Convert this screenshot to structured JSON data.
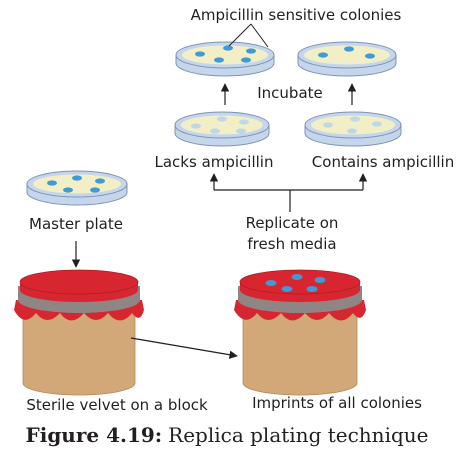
{
  "labels": {
    "ampicillin_sensitive": "Ampicillin sensitive colonies",
    "incubate": "Incubate",
    "lacks_ampicillin": "Lacks ampicillin",
    "contains_ampicillin": "Contains ampicillin",
    "master_plate": "Master plate",
    "replicate_line1": "Replicate on",
    "replicate_line2": "fresh media",
    "sterile_velvet": "Sterile velvet on a block",
    "imprints": "Imprints of all colonies"
  },
  "caption": {
    "number": "Figure 4.19:",
    "title": "Replica plating technique"
  },
  "colors": {
    "dish_rim": "#c5d5ec",
    "dish_outline": "#7f93b0",
    "medium": "#f2efc6",
    "colony": "#3f9ad6",
    "colony_faint": "#bcd9e8",
    "block": "#d2a879",
    "velvet": "#d7262f",
    "band": "#8f8585",
    "arrow": "#231f20"
  }
}
